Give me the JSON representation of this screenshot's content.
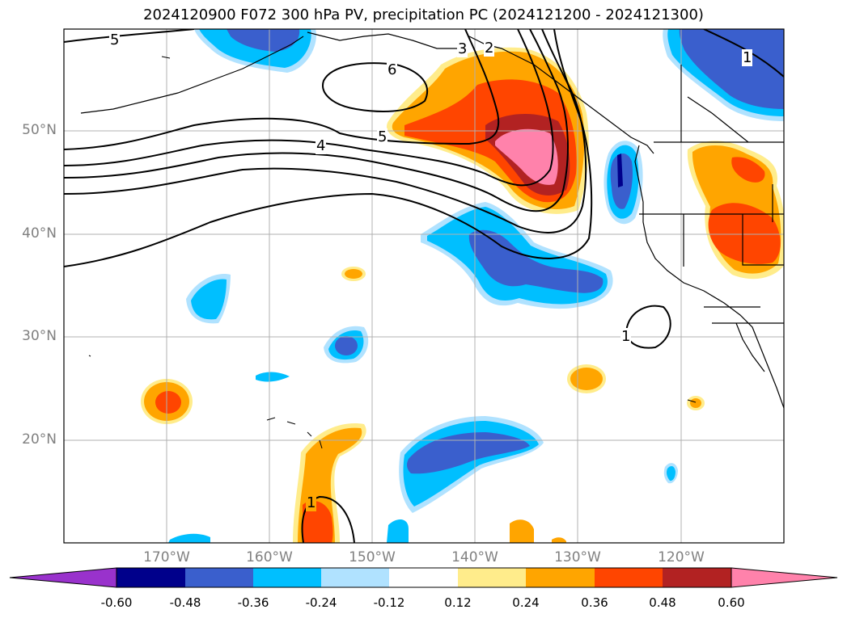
{
  "title": "2024120900 F072 300 hPa PV, precipitation PC (2024121200 - 2024121300)",
  "lat_labels": [
    "50°N",
    "40°N",
    "30°N",
    "20°N"
  ],
  "lon_labels": [
    "170°W",
    "160°W",
    "150°W",
    "140°W",
    "130°W",
    "120°W"
  ],
  "contour_labels": [
    "5",
    "6",
    "5",
    "4",
    "3",
    "2",
    "1",
    "1",
    "1"
  ],
  "colorbar": {
    "labels": [
      "-0.60",
      "-0.48",
      "-0.36",
      "-0.24",
      "-0.12",
      "0.12",
      "0.24",
      "0.36",
      "0.48",
      "0.60"
    ],
    "colors": [
      "#9932cc",
      "#00008b",
      "#3a5fcd",
      "#00bfff",
      "#b0e2ff",
      "#ffffff",
      "#ffec8b",
      "#ffa500",
      "#ff4500",
      "#b22222",
      "#ff82ab"
    ]
  },
  "colors": {
    "gridline": "#b0b0b0",
    "coast": "#000000",
    "contour": "#000000"
  }
}
